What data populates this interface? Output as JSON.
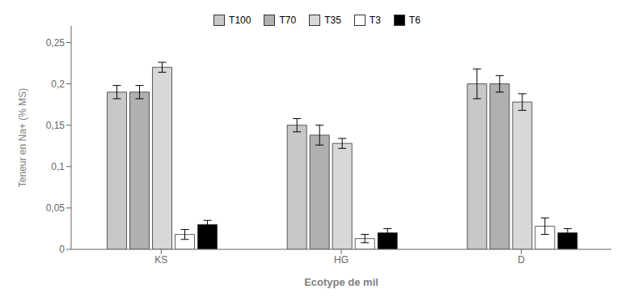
{
  "chart_data": {
    "type": "bar",
    "xlabel": "Ecotype de mil",
    "ylabel": "Teneur en  Na+ (% MS)",
    "categories": [
      "KS",
      "HG",
      "D"
    ],
    "series": [
      {
        "name": "T100",
        "color": "#c8c8c8",
        "values": [
          0.19,
          0.15,
          0.2
        ],
        "errors": [
          0.008,
          0.008,
          0.018
        ]
      },
      {
        "name": "T70",
        "color": "#b0b0b0",
        "values": [
          0.19,
          0.138,
          0.2
        ],
        "errors": [
          0.008,
          0.012,
          0.01
        ]
      },
      {
        "name": "T35",
        "color": "#d8d8d8",
        "values": [
          0.22,
          0.128,
          0.178
        ],
        "errors": [
          0.006,
          0.006,
          0.01
        ]
      },
      {
        "name": "T3",
        "color": "#ffffff",
        "values": [
          0.018,
          0.013,
          0.028
        ],
        "errors": [
          0.006,
          0.005,
          0.01
        ]
      },
      {
        "name": "T6",
        "color": "#000000",
        "values": [
          0.03,
          0.02,
          0.02
        ],
        "errors": [
          0.005,
          0.005,
          0.005
        ]
      }
    ],
    "ylim": [
      0,
      0.27
    ],
    "yticks": [
      0,
      {
        "value": 0.05,
        "label": "0,05"
      },
      {
        "value": 0.1,
        "label": "0,1"
      },
      {
        "value": 0.15,
        "label": "0,15"
      },
      {
        "value": 0.2,
        "label": "0,2"
      },
      {
        "value": 0.25,
        "label": "0,25"
      }
    ],
    "grid": false,
    "legend": "top"
  }
}
